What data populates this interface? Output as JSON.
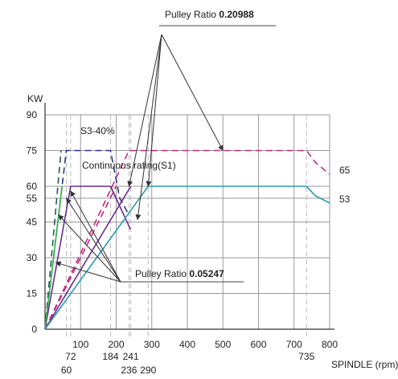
{
  "chart_data": {
    "type": "line",
    "title": "",
    "ylabel": "KW",
    "xlabel": "SPINDLE (rpm)",
    "xlim": [
      0,
      800
    ],
    "ylim": [
      0,
      90
    ],
    "grid": true,
    "y_ticks": [
      0,
      15,
      30,
      45,
      55,
      60,
      75,
      90
    ],
    "x_ticks": [
      100,
      200,
      300,
      400,
      500,
      600,
      700,
      800
    ],
    "x_ticks_extra_upper": [
      72,
      184,
      241,
      735
    ],
    "x_ticks_extra_lower": [
      60,
      236,
      290
    ],
    "x_guides": [
      60,
      72,
      184,
      236,
      241,
      290,
      735
    ],
    "annotations": {
      "pulley_high_prefix": "Pulley Ratio ",
      "pulley_high_value": "0.20988",
      "pulley_low_prefix": "Pulley Ratio ",
      "pulley_low_value": "0.05247",
      "s3_label": "S3-40%",
      "continuous_label": "Continuous rating(S1)",
      "end_label_s3": "65",
      "end_label_s1": "53"
    },
    "colors": {
      "navy": "#2b2f8a",
      "purple": "#6a2c91",
      "magenta": "#c4297d",
      "teal": "#2a9ab8",
      "darkgreen": "#1d5f55",
      "green": "#37b049"
    },
    "series": [
      {
        "color": "navy",
        "dash": true,
        "points": [
          [
            0,
            0
          ],
          [
            60,
            75
          ],
          [
            184,
            75
          ],
          [
            210,
            55
          ],
          [
            236,
            48
          ]
        ]
      },
      {
        "color": "purple",
        "dash": false,
        "points": [
          [
            0,
            0
          ],
          [
            72,
            60
          ],
          [
            184,
            60
          ],
          [
            200,
            55
          ]
        ]
      },
      {
        "color": "purple",
        "dash": false,
        "points": [
          [
            184,
            60
          ],
          [
            240,
            42
          ]
        ]
      },
      {
        "color": "darkgreen",
        "dash": true,
        "points": [
          [
            0,
            0
          ],
          [
            45,
            75
          ]
        ]
      },
      {
        "color": "green",
        "dash": false,
        "points": [
          [
            0,
            0
          ],
          [
            48,
            60
          ]
        ]
      },
      {
        "color": "magenta",
        "dash": true,
        "points": [
          [
            0,
            0
          ],
          [
            236,
            75
          ],
          [
            735,
            75
          ],
          [
            760,
            70
          ],
          [
            800,
            65
          ]
        ]
      },
      {
        "color": "purple",
        "dash": false,
        "points": [
          [
            0,
            0
          ],
          [
            241,
            60
          ]
        ]
      },
      {
        "color": "magenta",
        "dash": true,
        "points": [
          [
            0,
            0
          ],
          [
            200,
            60
          ]
        ]
      },
      {
        "color": "teal",
        "dash": false,
        "points": [
          [
            0,
            0
          ],
          [
            290,
            60
          ],
          [
            735,
            60
          ],
          [
            760,
            56
          ],
          [
            800,
            53
          ]
        ]
      }
    ]
  }
}
